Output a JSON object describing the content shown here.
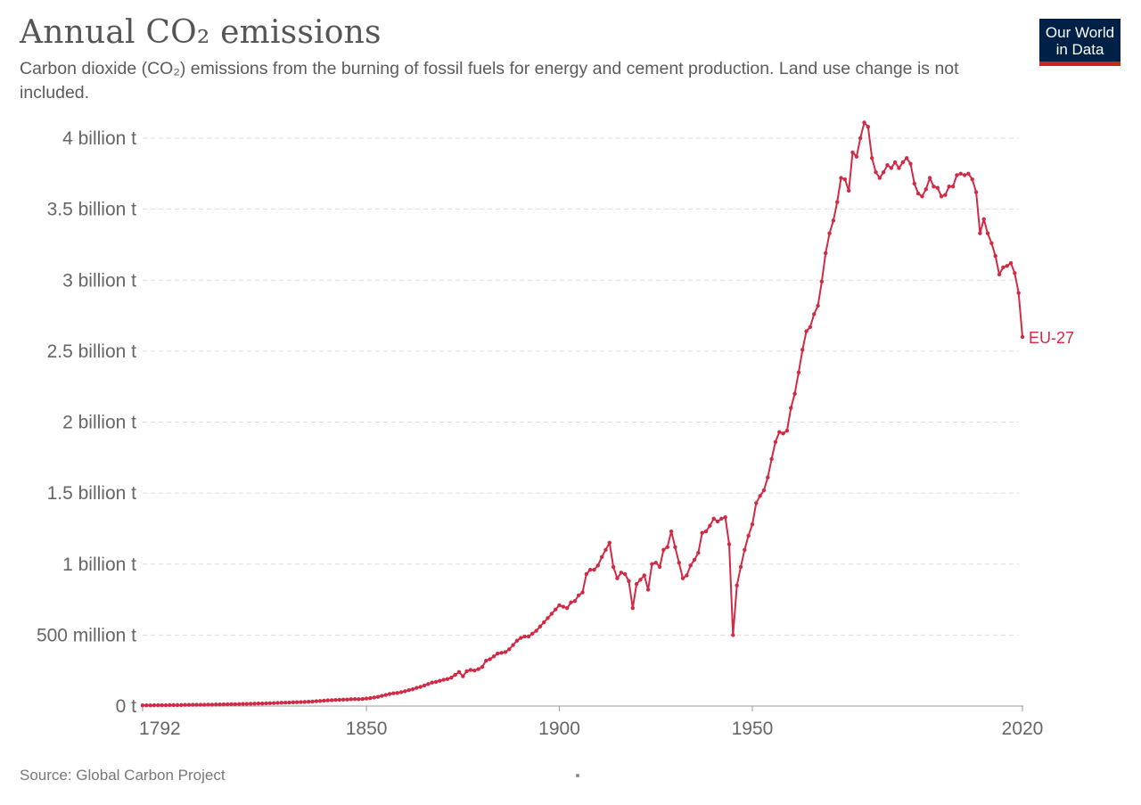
{
  "header": {
    "title": "Annual CO₂ emissions",
    "subtitle": "Carbon dioxide (CO₂) emissions from the burning of fossil fuels for energy and cement production. Land use change is not included."
  },
  "logo": {
    "text_line1": "Our World",
    "text_line2": "in Data"
  },
  "footer": {
    "source": "Source: Global Carbon Project"
  },
  "colors": {
    "series": "#d12a45",
    "grid": "#dddddd",
    "axis": "#999999"
  },
  "chart_data": {
    "type": "line",
    "title": "Annual CO₂ emissions",
    "xlabel": "",
    "ylabel": "",
    "unit": "billion t",
    "xlim": [
      1792,
      2020
    ],
    "ylim": [
      0,
      4
    ],
    "grid": true,
    "yticks": [
      {
        "value": 0,
        "label": "0 t"
      },
      {
        "value": 0.5,
        "label": "500 million t"
      },
      {
        "value": 1,
        "label": "1 billion t"
      },
      {
        "value": 1.5,
        "label": "1.5 billion t"
      },
      {
        "value": 2,
        "label": "2 billion t"
      },
      {
        "value": 2.5,
        "label": "2.5 billion t"
      },
      {
        "value": 3,
        "label": "3 billion t"
      },
      {
        "value": 3.5,
        "label": "3.5 billion t"
      },
      {
        "value": 4,
        "label": "4 billion t"
      }
    ],
    "xticks": [
      {
        "value": 1792,
        "label": "1792"
      },
      {
        "value": 1850,
        "label": "1850"
      },
      {
        "value": 1900,
        "label": "1900"
      },
      {
        "value": 1950,
        "label": "1950"
      },
      {
        "value": 2020,
        "label": "2020"
      }
    ],
    "series": [
      {
        "name": "EU-27",
        "start_year": 1792,
        "values": [
          0.005,
          0.005,
          0.005,
          0.006,
          0.006,
          0.006,
          0.006,
          0.007,
          0.007,
          0.007,
          0.007,
          0.008,
          0.008,
          0.009,
          0.009,
          0.009,
          0.009,
          0.01,
          0.01,
          0.011,
          0.011,
          0.012,
          0.012,
          0.013,
          0.013,
          0.014,
          0.015,
          0.015,
          0.016,
          0.017,
          0.018,
          0.018,
          0.019,
          0.02,
          0.021,
          0.022,
          0.023,
          0.024,
          0.025,
          0.026,
          0.027,
          0.028,
          0.029,
          0.03,
          0.032,
          0.034,
          0.036,
          0.038,
          0.04,
          0.041,
          0.043,
          0.044,
          0.045,
          0.046,
          0.048,
          0.049,
          0.048,
          0.05,
          0.053,
          0.056,
          0.06,
          0.065,
          0.072,
          0.078,
          0.085,
          0.09,
          0.092,
          0.098,
          0.105,
          0.112,
          0.118,
          0.128,
          0.135,
          0.145,
          0.155,
          0.165,
          0.17,
          0.178,
          0.185,
          0.19,
          0.2,
          0.22,
          0.24,
          0.21,
          0.245,
          0.255,
          0.25,
          0.26,
          0.275,
          0.32,
          0.33,
          0.35,
          0.37,
          0.375,
          0.38,
          0.4,
          0.43,
          0.46,
          0.48,
          0.49,
          0.49,
          0.51,
          0.53,
          0.56,
          0.59,
          0.62,
          0.65,
          0.68,
          0.71,
          0.7,
          0.69,
          0.73,
          0.74,
          0.78,
          0.8,
          0.93,
          0.96,
          0.96,
          0.99,
          1.05,
          1.1,
          1.15,
          0.98,
          0.9,
          0.94,
          0.93,
          0.88,
          0.69,
          0.86,
          0.89,
          0.92,
          0.82,
          1.0,
          1.01,
          0.98,
          1.1,
          1.12,
          1.23,
          1.12,
          1.01,
          0.9,
          0.92,
          0.99,
          1.03,
          1.08,
          1.22,
          1.23,
          1.27,
          1.32,
          1.3,
          1.32,
          1.33,
          1.14,
          0.5,
          0.85,
          0.98,
          1.1,
          1.2,
          1.28,
          1.43,
          1.48,
          1.52,
          1.61,
          1.74,
          1.86,
          1.93,
          1.92,
          1.94,
          2.1,
          2.2,
          2.35,
          2.51,
          2.64,
          2.67,
          2.76,
          2.82,
          2.99,
          3.19,
          3.33,
          3.42,
          3.55,
          3.72,
          3.71,
          3.63,
          3.9,
          3.87,
          4.0,
          4.11,
          4.08,
          3.86,
          3.76,
          3.72,
          3.76,
          3.81,
          3.79,
          3.83,
          3.79,
          3.83,
          3.86,
          3.82,
          3.68,
          3.61,
          3.59,
          3.64,
          3.72,
          3.66,
          3.65,
          3.59,
          3.6,
          3.66,
          3.66,
          3.74,
          3.75,
          3.74,
          3.75,
          3.71,
          3.62,
          3.33,
          3.43,
          3.33,
          3.26,
          3.17,
          3.04,
          3.09,
          3.1,
          3.12,
          3.05,
          2.91,
          2.6
        ]
      }
    ]
  }
}
